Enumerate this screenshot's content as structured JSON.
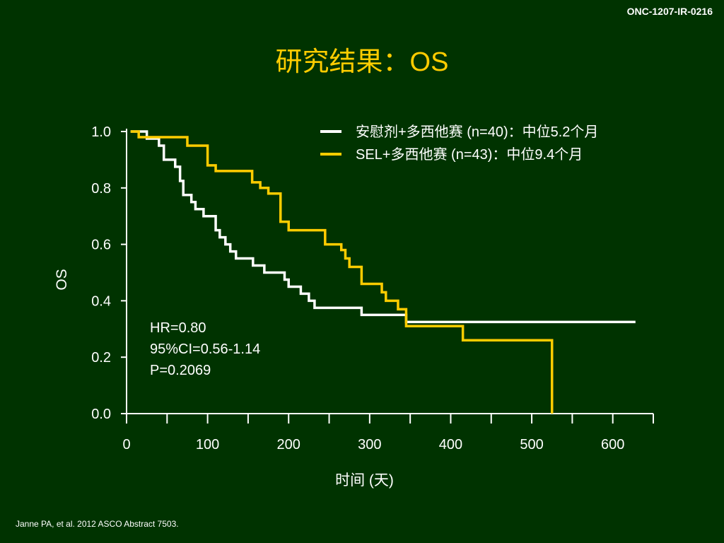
{
  "slide": {
    "code": "ONC-1207-IR-0216",
    "title": "研究结果：OS",
    "footnote": "Janne PA, et al. 2012 ASCO Abstract 7503."
  },
  "chart_data": {
    "type": "line",
    "step": true,
    "xlabel": "时间 (天)",
    "ylabel": "OS",
    "xlim": [
      0,
      650
    ],
    "ylim": [
      0,
      1.0
    ],
    "x_ticks": [
      0,
      100,
      200,
      300,
      400,
      500,
      600
    ],
    "x_tick_labels": [
      "0",
      "100",
      "200",
      "300",
      "400",
      "500",
      "600"
    ],
    "y_ticks": [
      0.0,
      0.2,
      0.4,
      0.6,
      0.8,
      1.0
    ],
    "y_tick_labels": [
      "0.0",
      "0.2",
      "0.4",
      "0.6",
      "0.8",
      "1.0"
    ],
    "legend_position": "top-right",
    "annotations": [
      "HR=0.80",
      "95%CI=0.56-1.14",
      "P=0.2069"
    ],
    "series": [
      {
        "name": "安慰剂+多西他赛 (n=40)：中位5.2个月",
        "color": "#ffffff",
        "x": [
          5,
          22,
          25,
          36,
          40,
          46,
          60,
          66,
          70,
          80,
          85,
          95,
          110,
          115,
          122,
          128,
          135,
          156,
          170,
          195,
          200,
          215,
          225,
          232,
          290,
          345,
          628
        ],
        "y": [
          1.0,
          1.0,
          0.975,
          0.975,
          0.95,
          0.9,
          0.875,
          0.825,
          0.775,
          0.75,
          0.725,
          0.7,
          0.65,
          0.625,
          0.6,
          0.575,
          0.55,
          0.525,
          0.5,
          0.475,
          0.45,
          0.425,
          0.4,
          0.375,
          0.35,
          0.325,
          0.325
        ]
      },
      {
        "name": "SEL+多西他赛 (n=43)：中位9.4个月",
        "color": "#ffcc00",
        "x": [
          5,
          15,
          75,
          100,
          110,
          155,
          165,
          175,
          190,
          200,
          215,
          245,
          265,
          270,
          275,
          290,
          315,
          320,
          335,
          345,
          415,
          525,
          525
        ],
        "y": [
          1.0,
          0.98,
          0.95,
          0.88,
          0.86,
          0.82,
          0.8,
          0.78,
          0.68,
          0.65,
          0.65,
          0.6,
          0.58,
          0.55,
          0.52,
          0.46,
          0.43,
          0.4,
          0.37,
          0.31,
          0.26,
          0.26,
          0.0
        ]
      }
    ]
  }
}
